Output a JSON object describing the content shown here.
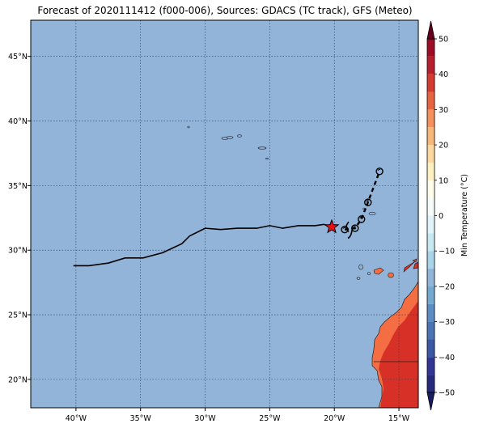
{
  "title": "Forecast of 2020111412 (f000-006), Sources: GDACS (TC track), GFS (Meteo)",
  "map": {
    "lon_range": [
      -43.5,
      -13.5
    ],
    "lat_range": [
      17.8,
      47.8
    ],
    "lon_ticks": [
      -40,
      -35,
      -30,
      -25,
      -20,
      -15
    ],
    "lon_tick_labels": [
      "40°W",
      "35°W",
      "30°W",
      "25°W",
      "20°W",
      "15°W"
    ],
    "lat_ticks": [
      20,
      25,
      30,
      35,
      40,
      45
    ],
    "lat_tick_labels": [
      "20°N",
      "25°N",
      "30°N",
      "35°N",
      "40°N",
      "45°N"
    ],
    "ocean_color": "#92b4d8",
    "grid": true
  },
  "colorbar": {
    "label": "Min Temperature (°C)",
    "ticks": [
      50,
      40,
      30,
      20,
      10,
      0,
      -10,
      -20,
      -30,
      -40,
      -50
    ],
    "tick_labels": [
      "50",
      "40",
      "30",
      "20",
      "10",
      "0",
      "−10",
      "−20",
      "−30",
      "−40",
      "−50"
    ],
    "levels_top_to_bottom": [
      {
        "range": [
          50,
          55
        ],
        "color": "#67001f"
      },
      {
        "range": [
          45,
          50
        ],
        "color": "#9e0c26"
      },
      {
        "range": [
          40,
          45
        ],
        "color": "#b81f2d"
      },
      {
        "range": [
          35,
          40
        ],
        "color": "#d63a2e"
      },
      {
        "range": [
          30,
          35
        ],
        "color": "#e8633f"
      },
      {
        "range": [
          25,
          30
        ],
        "color": "#f4915c"
      },
      {
        "range": [
          20,
          25
        ],
        "color": "#f8b77a"
      },
      {
        "range": [
          15,
          20
        ],
        "color": "#fcd89e"
      },
      {
        "range": [
          10,
          15
        ],
        "color": "#fef0bf"
      },
      {
        "range": [
          5,
          10
        ],
        "color": "#fffde8"
      },
      {
        "range": [
          0,
          5
        ],
        "color": "#f4fbf8"
      },
      {
        "range": [
          -5,
          0
        ],
        "color": "#e0f3f8"
      },
      {
        "range": [
          -10,
          -5
        ],
        "color": "#c8e8f1"
      },
      {
        "range": [
          -15,
          -10
        ],
        "color": "#aad4e8"
      },
      {
        "range": [
          -20,
          -15
        ],
        "color": "#92b4d8"
      },
      {
        "range": [
          -25,
          -20
        ],
        "color": "#74a9cf"
      },
      {
        "range": [
          -30,
          -25
        ],
        "color": "#5b8cc2"
      },
      {
        "range": [
          -35,
          -30
        ],
        "color": "#4a74b4"
      },
      {
        "range": [
          -40,
          -35
        ],
        "color": "#3b58a3"
      },
      {
        "range": [
          -45,
          -40
        ],
        "color": "#313695"
      },
      {
        "range": [
          -50,
          -45
        ],
        "color": "#252a7a"
      },
      {
        "range": [
          -55,
          -50
        ],
        "color": "#1a1d5e"
      }
    ]
  },
  "tc_track": [
    [
      -40.2,
      28.8
    ],
    [
      -39.0,
      28.8
    ],
    [
      -37.5,
      29.0
    ],
    [
      -36.2,
      29.4
    ],
    [
      -34.8,
      29.4
    ],
    [
      -33.3,
      29.8
    ],
    [
      -31.8,
      30.5
    ],
    [
      -31.2,
      31.1
    ],
    [
      -30.0,
      31.7
    ],
    [
      -28.8,
      31.6
    ],
    [
      -27.5,
      31.7
    ],
    [
      -26.0,
      31.7
    ],
    [
      -25.0,
      31.9
    ],
    [
      -24.0,
      31.7
    ],
    [
      -22.8,
      31.9
    ],
    [
      -21.5,
      31.9
    ],
    [
      -20.8,
      32.0
    ],
    [
      -20.3,
      31.8
    ]
  ],
  "forecast_track": [
    [
      -19.2,
      31.6
    ],
    [
      -18.4,
      31.7
    ],
    [
      -17.9,
      32.4
    ],
    [
      -17.4,
      33.7
    ],
    [
      -16.5,
      36.1
    ]
  ],
  "current_position": [
    -20.2,
    31.8
  ]
}
